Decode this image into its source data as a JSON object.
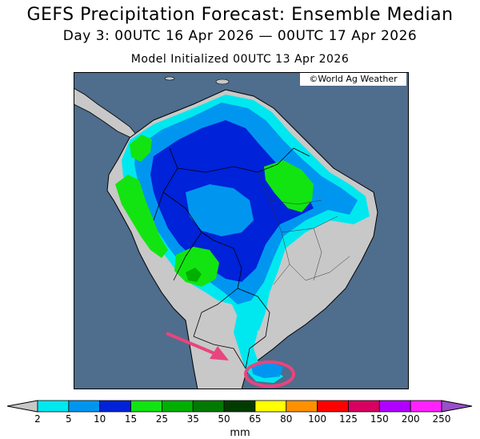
{
  "header": {
    "title": "GEFS Precipitation Forecast: Ensemble Median",
    "subtitle": "Day 3: 00UTC 16 Apr 2026 — 00UTC 17 Apr 2026",
    "init": "Model Initialized 00UTC 13 Apr 2026"
  },
  "map": {
    "credit": "©World Ag Weather",
    "ocean_color": "#4f6d8c",
    "land_color": "#c8c8c8",
    "annotations": [
      {
        "type": "arrow",
        "color": "#e8457e",
        "meaning": "points toward southern Brazil / Uruguay"
      },
      {
        "type": "ellipse",
        "color": "#e8457e",
        "meaning": "circles precipitation near Rio Grande do Sul coast"
      }
    ]
  },
  "colorbar": {
    "unit": "mm",
    "thresholds": [
      "2",
      "5",
      "10",
      "15",
      "25",
      "35",
      "50",
      "65",
      "80",
      "100",
      "125",
      "150",
      "200",
      "250"
    ],
    "colors": [
      "#00e8ef",
      "#0096f0",
      "#0022d8",
      "#12e412",
      "#00b000",
      "#007a00",
      "#003c00",
      "#ffff00",
      "#ff9000",
      "#ff0000",
      "#d80060",
      "#b000ff",
      "#ff22ff",
      "#9a50c8"
    ]
  }
}
